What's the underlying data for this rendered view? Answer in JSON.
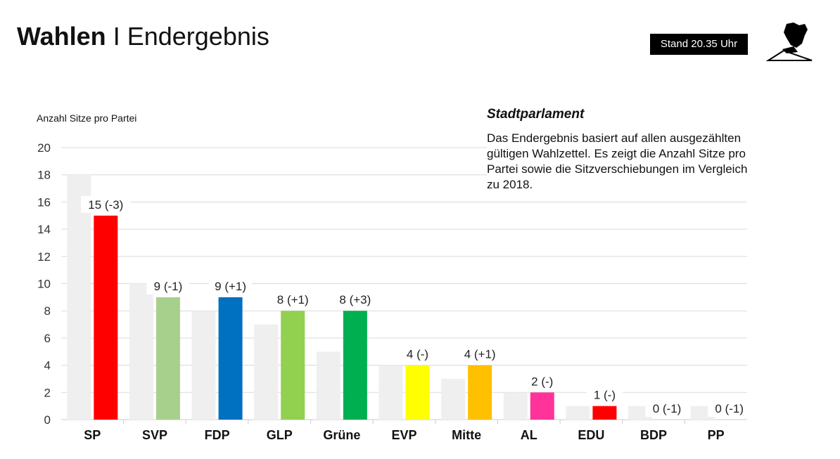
{
  "header": {
    "title_bold": "Wahlen",
    "separator": "I",
    "title_rest": "Endergebnis",
    "stand": "Stand 20.35 Uhr",
    "logo_icon": "ballot-hand-icon"
  },
  "info": {
    "title": "Stadtparlament",
    "text": "Das Endergebnis basiert auf allen ausgezählten gültigen Wahlzettel. Es zeigt die Anzahl Sitze pro Partei sowie die Sitzverschiebungen im Vergleich zu 2018."
  },
  "chart_data": {
    "type": "bar",
    "ylabel": "Anzahl Sitze pro Partei",
    "ylim": [
      0,
      20
    ],
    "yticks": [
      0,
      2,
      4,
      6,
      8,
      10,
      12,
      14,
      16,
      18,
      20
    ],
    "grid": true,
    "categories": [
      "SP",
      "SVP",
      "FDP",
      "GLP",
      "Grüne",
      "EVP",
      "Mitte",
      "AL",
      "EDU",
      "BDP",
      "PP"
    ],
    "series": [
      {
        "values": [
          18,
          10,
          8,
          7,
          5,
          4,
          3,
          2,
          1,
          1,
          1
        ],
        "color": "#efefef"
      },
      {
        "values": [
          15,
          9,
          9,
          8,
          8,
          4,
          4,
          2,
          1,
          0,
          0
        ],
        "colors": [
          "#ff0000",
          "#a8d08d",
          "#0070c0",
          "#92d050",
          "#00b050",
          "#ffff00",
          "#ffc000",
          "#ff3399",
          "#ff0000",
          "#999999",
          "#999999"
        ]
      }
    ],
    "data_labels": [
      "15 (-3)",
      "9 (-1)",
      "9 (+1)",
      "8 (+1)",
      "8 (+3)",
      "4 (-)",
      "4 (+1)",
      "2 (-)",
      "1 (-)",
      "0 (-1)",
      "0 (-1)"
    ]
  }
}
